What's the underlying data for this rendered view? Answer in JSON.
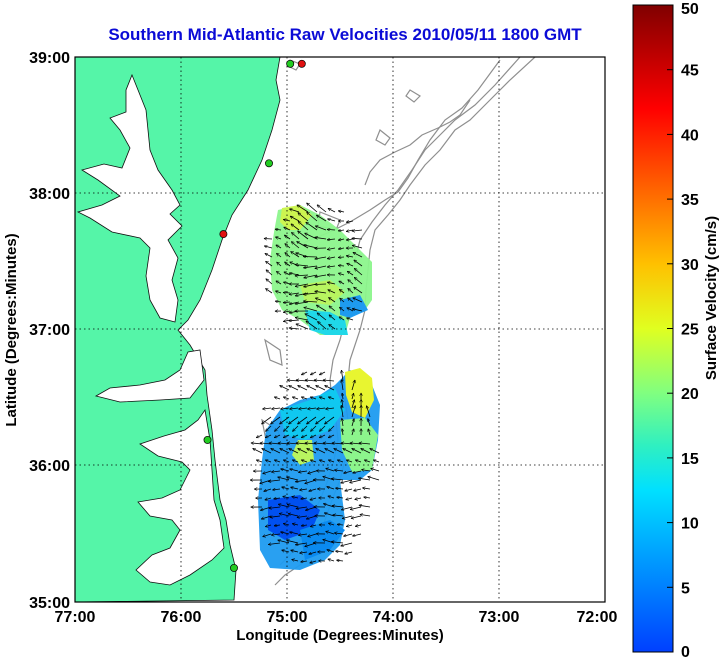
{
  "title": "Southern Mid-Atlantic Raw Velocities 2010/05/11 1800 GMT",
  "x_axis": {
    "label": "Longitude (Degrees:Minutes)",
    "ticks": [
      "77:00",
      "76:00",
      "75:00",
      "74:00",
      "73:00",
      "72:00"
    ]
  },
  "y_axis": {
    "label": "Latitude (Degrees:Minutes)",
    "ticks": [
      "39:00",
      "38:00",
      "37:00",
      "36:00",
      "35:00"
    ]
  },
  "colorbar": {
    "label": "Surface Velocity (cm/s)",
    "ticks": [
      "50",
      "45",
      "40",
      "35",
      "30",
      "25",
      "20",
      "15",
      "10",
      "5",
      "0"
    ],
    "range": [
      0,
      50
    ]
  },
  "map": {
    "lon_range": [
      -77,
      -72
    ],
    "lat_range": [
      35,
      39
    ],
    "land_color": "#55f5a8",
    "bathymetry_color": "#8f8f8f",
    "grid": "dotted"
  },
  "stations": [
    {
      "lon": -74.86,
      "lat": 38.95,
      "status": "red"
    },
    {
      "lon": -74.97,
      "lat": 38.95,
      "status": "green"
    },
    {
      "lon": -75.17,
      "lat": 38.22,
      "status": "green"
    },
    {
      "lon": -75.6,
      "lat": 37.7,
      "status": "red"
    },
    {
      "lon": -75.75,
      "lat": 36.19,
      "status": "green"
    },
    {
      "lon": -75.5,
      "lat": 35.25,
      "status": "green"
    }
  ]
}
